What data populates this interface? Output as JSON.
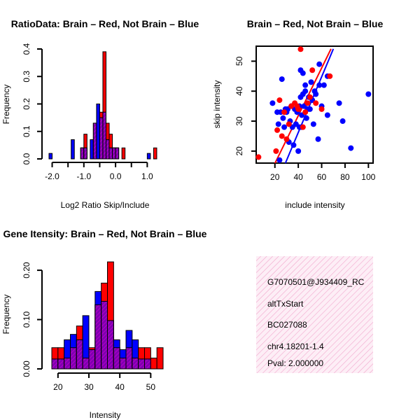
{
  "colors": {
    "red": "#ff0000",
    "blue": "#0000ff",
    "purple_hatch": "#cc00cc",
    "purple_fill": "#7f00b2",
    "pink": "#ff99cc",
    "pval": "#b00000"
  },
  "chart_data": [
    {
      "type": "bar",
      "title": "RatioData: Brain – Red, Not Brain – Blue",
      "xlabel": "Log2 Ratio Skip/Include",
      "ylabel": "Frequency",
      "xlim": [
        -2.1,
        1.5
      ],
      "ylim": [
        0,
        0.4
      ],
      "x_ticks": [
        -2.0,
        -1.5,
        -1.0,
        -0.5,
        0.0,
        0.5,
        1.0
      ],
      "x_tick_labels": [
        "-2.0",
        "",
        "-1.0",
        "",
        "0.0",
        "",
        "1.0"
      ],
      "y_ticks": [
        0.0,
        0.1,
        0.2,
        0.3,
        0.4
      ],
      "y_tick_labels": [
        "0.0",
        "0.1",
        "0.2",
        "0.3",
        "0.4"
      ],
      "bin_width": 0.1,
      "bins_start": [
        -2.1,
        -2.0,
        -1.9,
        -1.8,
        -1.7,
        -1.6,
        -1.5,
        -1.4,
        -1.3,
        -1.2,
        -1.1,
        -1.0,
        -0.9,
        -0.8,
        -0.7,
        -0.6,
        -0.5,
        -0.4,
        -0.3,
        -0.2,
        -0.1,
        0.0,
        0.1,
        0.2,
        0.3,
        0.4,
        0.5,
        0.6,
        0.7,
        0.8,
        0.9,
        1.0,
        1.1,
        1.2,
        1.3
      ],
      "series": [
        {
          "name": "Brain",
          "color": "red",
          "values": [
            0,
            0,
            0,
            0,
            0,
            0,
            0,
            0,
            0,
            0,
            0.04,
            0.09,
            0,
            0,
            0.13,
            0,
            0.17,
            0.39,
            0.13,
            0.09,
            0.04,
            0.04,
            0,
            0.04,
            0,
            0,
            0,
            0,
            0,
            0,
            0,
            0,
            0,
            0.04,
            0
          ]
        },
        {
          "name": "Not Brain",
          "color": "blue",
          "values": [
            0.02,
            0,
            0,
            0,
            0,
            0,
            0,
            0.07,
            0,
            0,
            0.04,
            0.04,
            0,
            0.07,
            0.13,
            0.2,
            0.15,
            0.17,
            0.07,
            0.04,
            0.04,
            0.04,
            0,
            0,
            0,
            0,
            0,
            0,
            0,
            0,
            0,
            0.02,
            0,
            0,
            0
          ]
        }
      ]
    },
    {
      "type": "scatter",
      "title": "Brain – Red, Not Brain – Blue",
      "xlabel": "include intensity",
      "ylabel": "skip intensity",
      "xlim": [
        4,
        104
      ],
      "ylim": [
        16,
        55
      ],
      "x_ticks": [
        20,
        40,
        60,
        80,
        100
      ],
      "y_ticks": [
        20,
        30,
        40,
        50
      ],
      "series": [
        {
          "name": "Brain",
          "color": "red",
          "points": [
            [
              6,
              18
            ],
            [
              21,
              20
            ],
            [
              22,
              27
            ],
            [
              24,
              37
            ],
            [
              26,
              25
            ],
            [
              28,
              33
            ],
            [
              30,
              24
            ],
            [
              32,
              29
            ],
            [
              34,
              35
            ],
            [
              37,
              36
            ],
            [
              39,
              35
            ],
            [
              40,
              34
            ],
            [
              42,
              54
            ],
            [
              44,
              28
            ],
            [
              46,
              33
            ],
            [
              48,
              36
            ],
            [
              50,
              38
            ],
            [
              52,
              47
            ],
            [
              55,
              36
            ],
            [
              60,
              34
            ],
            [
              67,
              45
            ]
          ],
          "fit": {
            "from": [
              20,
              15.9
            ],
            "to": [
              68,
              54.1
            ]
          }
        },
        {
          "name": "Not Brain",
          "color": "blue",
          "points": [
            [
              18,
              36
            ],
            [
              22,
              33
            ],
            [
              23,
              29
            ],
            [
              24,
              17
            ],
            [
              25,
              33
            ],
            [
              26,
              44
            ],
            [
              27,
              31
            ],
            [
              28,
              28
            ],
            [
              29,
              34
            ],
            [
              30,
              33
            ],
            [
              31,
              34
            ],
            [
              32,
              23
            ],
            [
              33,
              30
            ],
            [
              34,
              35
            ],
            [
              35,
              28
            ],
            [
              36,
              22
            ],
            [
              37,
              34
            ],
            [
              38,
              29
            ],
            [
              39,
              33
            ],
            [
              40,
              20
            ],
            [
              41,
              35
            ],
            [
              41,
              28
            ],
            [
              42,
              38
            ],
            [
              42,
              47
            ],
            [
              43,
              32
            ],
            [
              43,
              28
            ],
            [
              44,
              39
            ],
            [
              44,
              46
            ],
            [
              45,
              35
            ],
            [
              46,
              40
            ],
            [
              46,
              42
            ],
            [
              47,
              31
            ],
            [
              48,
              34
            ],
            [
              49,
              38
            ],
            [
              50,
              34
            ],
            [
              51,
              43
            ],
            [
              52,
              37
            ],
            [
              53,
              29
            ],
            [
              54,
              40
            ],
            [
              55,
              39
            ],
            [
              57,
              24
            ],
            [
              58,
              42
            ],
            [
              58,
              49
            ],
            [
              60,
              35
            ],
            [
              62,
              42
            ],
            [
              65,
              32
            ],
            [
              65,
              45
            ],
            [
              75,
              36
            ],
            [
              78,
              30
            ],
            [
              85,
              21
            ],
            [
              100,
              39
            ]
          ],
          "fit": {
            "from": [
              29,
              16
            ]
          },
          "fit_to": [
            70,
            54.1
          ]
        }
      ]
    },
    {
      "type": "bar",
      "title": "Gene Itensity: Brain – Red, Not Brain – Blue",
      "xlabel": "Intensity",
      "ylabel": "Frequency",
      "xlim": [
        18,
        54
      ],
      "ylim": [
        0,
        0.22
      ],
      "x_ticks": [
        20,
        30,
        40,
        50
      ],
      "y_ticks": [
        0.0,
        0.1,
        0.2
      ],
      "y_tick_labels": [
        "0.00",
        "0.10",
        "0.20"
      ],
      "bin_width": 2,
      "bins_start": [
        18,
        20,
        22,
        24,
        26,
        28,
        30,
        32,
        34,
        36,
        38,
        40,
        42,
        44,
        46,
        48,
        50,
        52
      ],
      "series": [
        {
          "name": "Brain",
          "color": "red",
          "values": [
            0.043,
            0.043,
            0.022,
            0.043,
            0.087,
            0.022,
            0.043,
            0.13,
            0.174,
            0.217,
            0.043,
            0.022,
            0.043,
            0.022,
            0.043,
            0.043,
            0.022,
            0.043
          ]
        },
        {
          "name": "Not Brain",
          "color": "blue",
          "values": [
            0.02,
            0.02,
            0.059,
            0.07,
            0.059,
            0.108,
            0.039,
            0.157,
            0.137,
            0.098,
            0.059,
            0.039,
            0.078,
            0.059,
            0.02,
            0.02,
            0.0,
            0.0
          ]
        }
      ]
    }
  ],
  "info_panel": {
    "id": "G7070501@J934409_RC",
    "event_type": "altTxStart",
    "accession": "BC027088",
    "location": "chr4.18201-1.4",
    "pval": "Pval: 2.000000"
  }
}
